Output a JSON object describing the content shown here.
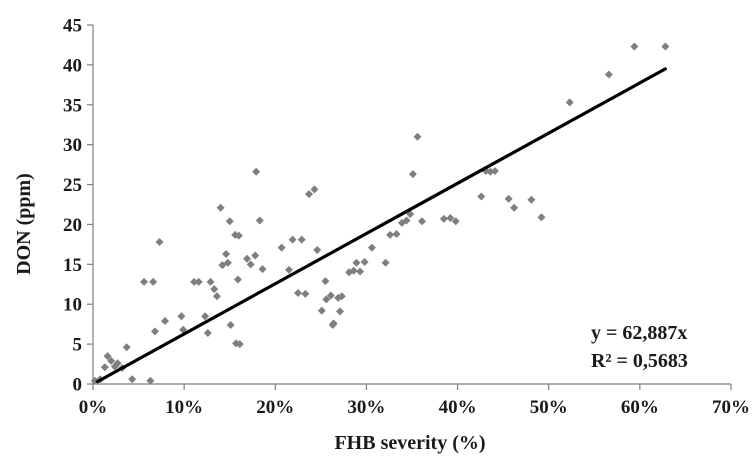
{
  "chart_data": {
    "type": "scatter",
    "title": "",
    "xlabel": "FHB severity (%)",
    "ylabel": "DON (ppm)",
    "xlim": [
      0,
      70
    ],
    "ylim": [
      0,
      45
    ],
    "x_ticks": [
      0,
      10,
      20,
      30,
      40,
      50,
      60,
      70
    ],
    "x_tick_labels": [
      "0%",
      "10%",
      "20%",
      "30%",
      "40%",
      "50%",
      "60%",
      "70%"
    ],
    "y_ticks": [
      0,
      5,
      10,
      15,
      20,
      25,
      30,
      35,
      40,
      45
    ],
    "y_tick_labels": [
      "0",
      "5",
      "10",
      "15",
      "20",
      "25",
      "30",
      "35",
      "40",
      "45"
    ],
    "grid": false,
    "legend": "none",
    "colors": {
      "points": "#7f7f7f",
      "trendline": "#000000",
      "axis": "#7f7f7f",
      "text": "#1a1a1a"
    },
    "points": [
      [
        0.2,
        0.4
      ],
      [
        0.8,
        0.6
      ],
      [
        1.3,
        2.1
      ],
      [
        1.6,
        3.5
      ],
      [
        2.0,
        2.9
      ],
      [
        2.4,
        2.2
      ],
      [
        2.7,
        2.6
      ],
      [
        3.2,
        2.0
      ],
      [
        3.7,
        4.6
      ],
      [
        4.3,
        0.6
      ],
      [
        5.6,
        12.8
      ],
      [
        6.3,
        0.4
      ],
      [
        6.6,
        12.8
      ],
      [
        6.8,
        6.6
      ],
      [
        7.3,
        17.8
      ],
      [
        7.9,
        7.9
      ],
      [
        9.7,
        8.5
      ],
      [
        9.9,
        6.8
      ],
      [
        11.1,
        12.8
      ],
      [
        11.6,
        12.8
      ],
      [
        12.3,
        8.5
      ],
      [
        12.6,
        6.4
      ],
      [
        12.9,
        12.8
      ],
      [
        13.3,
        11.9
      ],
      [
        13.6,
        11.0
      ],
      [
        14.0,
        22.1
      ],
      [
        14.2,
        14.9
      ],
      [
        14.6,
        16.3
      ],
      [
        14.8,
        15.2
      ],
      [
        15.0,
        20.4
      ],
      [
        15.1,
        7.4
      ],
      [
        15.6,
        18.7
      ],
      [
        15.7,
        5.1
      ],
      [
        15.9,
        13.1
      ],
      [
        16.0,
        18.6
      ],
      [
        16.1,
        5.0
      ],
      [
        16.9,
        15.7
      ],
      [
        17.3,
        15.0
      ],
      [
        17.8,
        16.1
      ],
      [
        17.9,
        26.6
      ],
      [
        18.3,
        20.5
      ],
      [
        18.6,
        14.4
      ],
      [
        20.7,
        17.1
      ],
      [
        21.5,
        14.3
      ],
      [
        21.9,
        18.1
      ],
      [
        22.5,
        11.4
      ],
      [
        22.9,
        18.1
      ],
      [
        23.3,
        11.3
      ],
      [
        23.7,
        23.8
      ],
      [
        24.3,
        24.4
      ],
      [
        24.6,
        16.8
      ],
      [
        25.1,
        9.2
      ],
      [
        25.5,
        12.9
      ],
      [
        25.6,
        10.6
      ],
      [
        26.1,
        11.1
      ],
      [
        26.3,
        7.4
      ],
      [
        26.4,
        7.6
      ],
      [
        26.9,
        10.8
      ],
      [
        27.3,
        11.0
      ],
      [
        27.1,
        9.1
      ],
      [
        28.1,
        14.0
      ],
      [
        28.6,
        14.2
      ],
      [
        28.9,
        15.2
      ],
      [
        29.3,
        14.1
      ],
      [
        29.8,
        15.3
      ],
      [
        30.6,
        17.1
      ],
      [
        32.1,
        15.2
      ],
      [
        32.6,
        18.7
      ],
      [
        33.3,
        18.8
      ],
      [
        33.9,
        20.2
      ],
      [
        34.4,
        20.5
      ],
      [
        34.8,
        21.3
      ],
      [
        35.1,
        26.3
      ],
      [
        35.6,
        31.0
      ],
      [
        36.1,
        20.4
      ],
      [
        38.5,
        20.7
      ],
      [
        39.2,
        20.8
      ],
      [
        39.8,
        20.4
      ],
      [
        42.6,
        23.5
      ],
      [
        43.1,
        26.7
      ],
      [
        43.6,
        26.6
      ],
      [
        44.1,
        26.7
      ],
      [
        45.6,
        23.2
      ],
      [
        46.2,
        22.1
      ],
      [
        48.1,
        23.1
      ],
      [
        49.2,
        20.9
      ],
      [
        52.3,
        35.3
      ],
      [
        56.6,
        38.8
      ],
      [
        59.4,
        42.3
      ],
      [
        62.8,
        42.3
      ]
    ],
    "trendline": {
      "type": "linear",
      "x": [
        0.5,
        62.8
      ],
      "y": [
        0.3,
        39.5
      ],
      "equation": "y = 62,887x",
      "r_squared": "R² = 0,5683"
    }
  }
}
